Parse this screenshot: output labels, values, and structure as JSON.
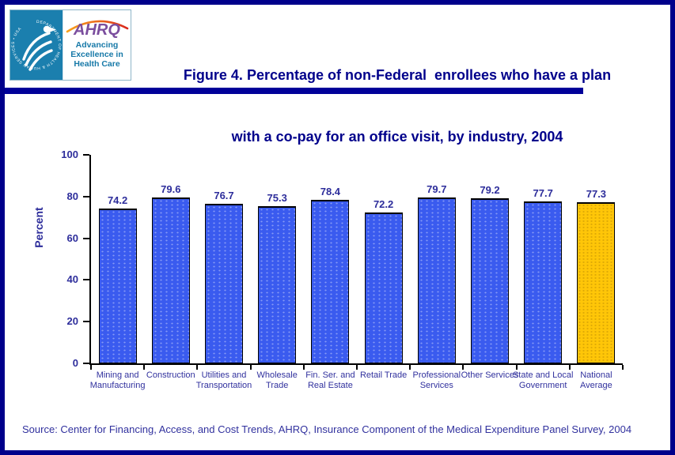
{
  "page": {
    "background": "#FFFFFF",
    "border_color": "#00008B",
    "divider_color": "#000099"
  },
  "header": {
    "logo": {
      "seal_text": "DEPARTMENT OF HEALTH & HUMAN SERVICES • USA",
      "acronym": "AHRQ",
      "tagline_line1": "Advancing",
      "tagline_line2": "Excellence in",
      "tagline_line3": "Health Care",
      "seal_color": "#1B7FAE",
      "acronym_color": "#7B4E9E"
    },
    "title_line1": "Figure 4. Percentage of non-Federal  enrollees who have a plan",
    "title_line2": "with a co-pay for an office visit, by industry, 2004",
    "title_color": "#00008B"
  },
  "chart_data": {
    "type": "bar",
    "title": "Figure 4. Percentage of non-Federal enrollees who have a plan with a co-pay for an office visit, by industry, 2004",
    "categories": [
      "Mining and\nManufacturing",
      "Construction",
      "Utilities and\nTransportation",
      "Wholesale\nTrade",
      "Fin. Ser. and\nReal Estate",
      "Retail Trade",
      "Professional\nServices",
      "Other Services",
      "State and Local\nGovernment",
      "National\nAverage"
    ],
    "values": [
      74.2,
      79.6,
      76.7,
      75.3,
      78.4,
      72.2,
      79.7,
      79.2,
      77.7,
      77.3
    ],
    "xlabel": "",
    "ylabel": "Percent",
    "ylim": [
      0,
      100
    ],
    "yticks": [
      0,
      20,
      40,
      60,
      80,
      100
    ],
    "grid": false,
    "legend": false,
    "bar_color": "#3A5BEF",
    "highlight_index": 9,
    "highlight_color": "#FFC608",
    "value_label_color": "#2D2D9B",
    "axis_text_color": "#2D2D9B"
  },
  "source": "Source: Center for Financing, Access, and Cost Trends, AHRQ, Insurance Component of the Medical Expenditure Panel Survey, 2004"
}
